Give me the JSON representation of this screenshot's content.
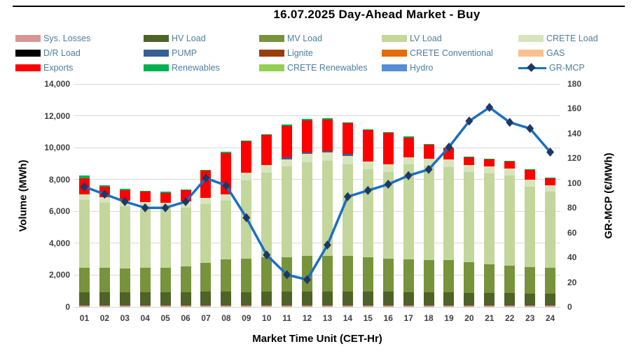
{
  "title": "16.07.2025  Day-Ahead Market - Buy",
  "legend": {
    "rows": [
      [
        {
          "key": "sys_losses",
          "label": "Sys. Losses",
          "color": "#d99694",
          "type": "box"
        },
        {
          "key": "hv_load",
          "label": "HV Load",
          "color": "#4f6228",
          "type": "box"
        },
        {
          "key": "mv_load",
          "label": "MV Load",
          "color": "#77933c",
          "type": "box"
        },
        {
          "key": "lv_load",
          "label": "LV Load",
          "color": "#c3d69b",
          "type": "box"
        },
        {
          "key": "crete_load",
          "label": "CRETE Load",
          "color": "#d7e4bc",
          "type": "box"
        }
      ],
      [
        {
          "key": "dr_load",
          "label": "D/R Load",
          "color": "#000000",
          "type": "box"
        },
        {
          "key": "pump",
          "label": "PUMP",
          "color": "#376092",
          "type": "box"
        },
        {
          "key": "lignite",
          "label": "Lignite",
          "color": "#963f0c",
          "type": "box"
        },
        {
          "key": "crete_conventional",
          "label": "CRETE Conventional",
          "color": "#e46c0a",
          "type": "box"
        },
        {
          "key": "gas",
          "label": "GAS",
          "color": "#fac090",
          "type": "box"
        }
      ],
      [
        {
          "key": "exports",
          "label": "Exports",
          "color": "#fe0000",
          "type": "box"
        },
        {
          "key": "renewables",
          "label": "Renewables",
          "color": "#00b050",
          "type": "box"
        },
        {
          "key": "crete_renewables",
          "label": "CRETE Renewables",
          "color": "#92d050",
          "type": "box"
        },
        {
          "key": "hydro",
          "label": "Hydro",
          "color": "#558ed5",
          "type": "box"
        },
        {
          "key": "gr_mcp",
          "label": "GR-MCP",
          "color": "#1a70c0",
          "type": "line"
        }
      ]
    ]
  },
  "chart_data": {
    "type": "bar",
    "subtype": "stacked-bar-with-line",
    "title": "16.07.2025  Day-Ahead Market - Buy",
    "xlabel": "Market Time Unit (CET-Hr)",
    "ylabel_left": "Volume (MWh)",
    "ylabel_right": "GR-MCP (€/MWh)",
    "ylim_left": [
      0,
      14000
    ],
    "ylim_right": [
      0,
      180
    ],
    "grid": "horizontal",
    "legend_position": "top",
    "categories": [
      "01",
      "02",
      "03",
      "04",
      "05",
      "06",
      "07",
      "08",
      "09",
      "10",
      "11",
      "12",
      "13",
      "14",
      "15",
      "16",
      "17",
      "18",
      "19",
      "20",
      "21",
      "22",
      "23",
      "24"
    ],
    "yticks_left": {
      "values": [
        0,
        2000,
        4000,
        6000,
        8000,
        10000,
        12000,
        14000
      ],
      "labels": [
        "0",
        "2,000",
        "4,000",
        "6,000",
        "8,000",
        "10,000",
        "12,000",
        "14,000"
      ]
    },
    "yticks_right": {
      "values": [
        0,
        20,
        40,
        60,
        80,
        100,
        120,
        140,
        160,
        180
      ],
      "labels": [
        "0",
        "20",
        "40",
        "60",
        "80",
        "100",
        "120",
        "140",
        "160",
        "180"
      ]
    },
    "series": [
      {
        "name": "Sys. Losses",
        "color": "#d99694",
        "values": [
          100,
          100,
          100,
          100,
          100,
          100,
          100,
          100,
          100,
          100,
          100,
          100,
          100,
          100,
          100,
          100,
          100,
          100,
          100,
          100,
          100,
          100,
          100,
          100
        ]
      },
      {
        "name": "HV Load",
        "color": "#4f6228",
        "values": [
          830,
          820,
          810,
          800,
          810,
          830,
          850,
          860,
          840,
          870,
          870,
          870,
          870,
          870,
          870,
          870,
          830,
          830,
          830,
          790,
          770,
          760,
          740,
          740
        ]
      },
      {
        "name": "MV Load",
        "color": "#77933c",
        "values": [
          1540,
          1520,
          1510,
          1550,
          1560,
          1630,
          1800,
          2040,
          2090,
          2130,
          2130,
          2240,
          2250,
          2240,
          2130,
          2080,
          2050,
          2020,
          2010,
          1920,
          1790,
          1730,
          1670,
          1600
        ]
      },
      {
        "name": "LV Load",
        "color": "#c3d69b",
        "values": [
          4230,
          4080,
          3890,
          3760,
          3710,
          3690,
          3700,
          3670,
          4910,
          5310,
          5730,
          5880,
          5970,
          5760,
          5530,
          5440,
          5960,
          5900,
          5850,
          5640,
          5720,
          5680,
          5060,
          4800
        ]
      },
      {
        "name": "CRETE Load",
        "color": "#d7e4bc",
        "values": [
          370,
          350,
          360,
          360,
          360,
          370,
          400,
          400,
          490,
          490,
          440,
          500,
          490,
          520,
          490,
          480,
          470,
          440,
          470,
          480,
          450,
          440,
          400,
          410
        ]
      },
      {
        "name": "D/R Load",
        "color": "#000000",
        "values": [
          0,
          0,
          0,
          0,
          0,
          0,
          0,
          0,
          0,
          0,
          0,
          0,
          0,
          0,
          0,
          0,
          0,
          0,
          0,
          0,
          0,
          0,
          0,
          0
        ]
      },
      {
        "name": "PUMP",
        "color": "#376092",
        "values": [
          0,
          0,
          0,
          0,
          0,
          0,
          0,
          0,
          0,
          0,
          100,
          110,
          100,
          100,
          0,
          0,
          0,
          0,
          0,
          0,
          0,
          0,
          0,
          0
        ]
      },
      {
        "name": "Lignite",
        "color": "#963f0c",
        "values": [
          0,
          0,
          0,
          0,
          0,
          0,
          0,
          0,
          0,
          0,
          0,
          0,
          0,
          0,
          0,
          0,
          0,
          0,
          0,
          0,
          0,
          0,
          0,
          0
        ]
      },
      {
        "name": "CRETE Conventional",
        "color": "#e46c0a",
        "values": [
          0,
          0,
          0,
          0,
          0,
          0,
          0,
          0,
          0,
          0,
          0,
          0,
          0,
          0,
          0,
          0,
          0,
          0,
          0,
          0,
          0,
          0,
          0,
          0
        ]
      },
      {
        "name": "GAS",
        "color": "#fac090",
        "values": [
          0,
          0,
          0,
          0,
          0,
          0,
          0,
          0,
          0,
          0,
          0,
          0,
          0,
          0,
          0,
          0,
          0,
          0,
          0,
          0,
          0,
          0,
          0,
          0
        ]
      },
      {
        "name": "Exports",
        "color": "#fe0000",
        "values": [
          985,
          670,
          670,
          670,
          630,
          710,
          1700,
          2590,
          1960,
          1900,
          2010,
          2030,
          2000,
          1940,
          1970,
          1960,
          1230,
          900,
          690,
          480,
          460,
          440,
          610,
          410
        ]
      },
      {
        "name": "Renewables",
        "color": "#00b050",
        "values": [
          175,
          80,
          60,
          60,
          60,
          60,
          70,
          70,
          70,
          60,
          60,
          60,
          60,
          60,
          60,
          60,
          50,
          50,
          50,
          40,
          30,
          30,
          50,
          40
        ]
      },
      {
        "name": "CRETE Renewables",
        "color": "#92d050",
        "values": [
          0,
          0,
          0,
          0,
          0,
          0,
          0,
          0,
          0,
          0,
          0,
          0,
          0,
          0,
          0,
          0,
          0,
          0,
          0,
          0,
          0,
          0,
          0,
          0
        ]
      },
      {
        "name": "Hydro",
        "color": "#558ed5",
        "values": [
          0,
          0,
          0,
          0,
          0,
          0,
          0,
          0,
          0,
          0,
          0,
          0,
          0,
          0,
          0,
          0,
          0,
          0,
          0,
          0,
          0,
          0,
          0,
          0
        ]
      }
    ],
    "line_series": {
      "name": "GR-MCP",
      "color": "#1a70c0",
      "marker": "diamond",
      "marker_color": "#1f3864",
      "values": [
        97,
        91,
        85,
        80,
        80,
        85,
        104,
        98,
        72,
        42,
        26,
        22,
        50,
        89,
        94,
        99,
        106,
        111,
        129,
        150,
        161,
        149,
        144,
        125
      ]
    }
  }
}
